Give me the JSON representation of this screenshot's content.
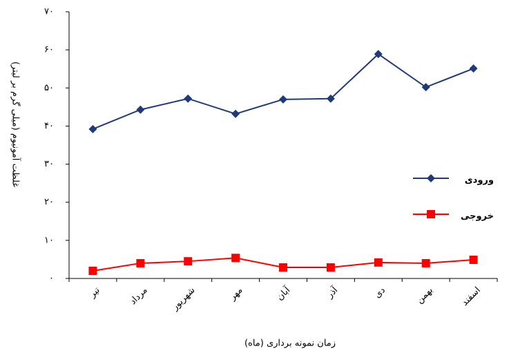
{
  "chart_data": {
    "type": "line",
    "y_label": "غلظت آمونیوم (میلی گرم بر لیتر)",
    "x_label": "زمان نمونه برداری (ماه)",
    "categories": [
      "تیر",
      "مرداد",
      "شهریور",
      "مهر",
      "آبان",
      "آذر",
      "دی",
      "بهمن",
      "اسفند"
    ],
    "series": [
      {
        "name": "ورودی",
        "color": "#1f3a78",
        "marker": "diamond",
        "values": [
          39.2,
          44.3,
          47.2,
          43.2,
          47.0,
          47.2,
          58.9,
          50.2,
          55.1
        ]
      },
      {
        "name": "خروجی",
        "color": "#ff0000",
        "marker": "square",
        "values": [
          2.0,
          4.0,
          4.5,
          5.4,
          2.9,
          2.9,
          4.2,
          4.0,
          4.9
        ]
      }
    ],
    "ylim": [
      0,
      70
    ],
    "yticks": [
      {
        "value": 0,
        "label": "۰"
      },
      {
        "value": 10,
        "label": "۱۰"
      },
      {
        "value": 20,
        "label": "۲۰"
      },
      {
        "value": 30,
        "label": "۳۰"
      },
      {
        "value": 40,
        "label": "۴۰"
      },
      {
        "value": 50,
        "label": "۵۰"
      },
      {
        "value": 60,
        "label": "۶۰"
      },
      {
        "value": 70,
        "label": "۷۰"
      }
    ],
    "legend": "right"
  }
}
